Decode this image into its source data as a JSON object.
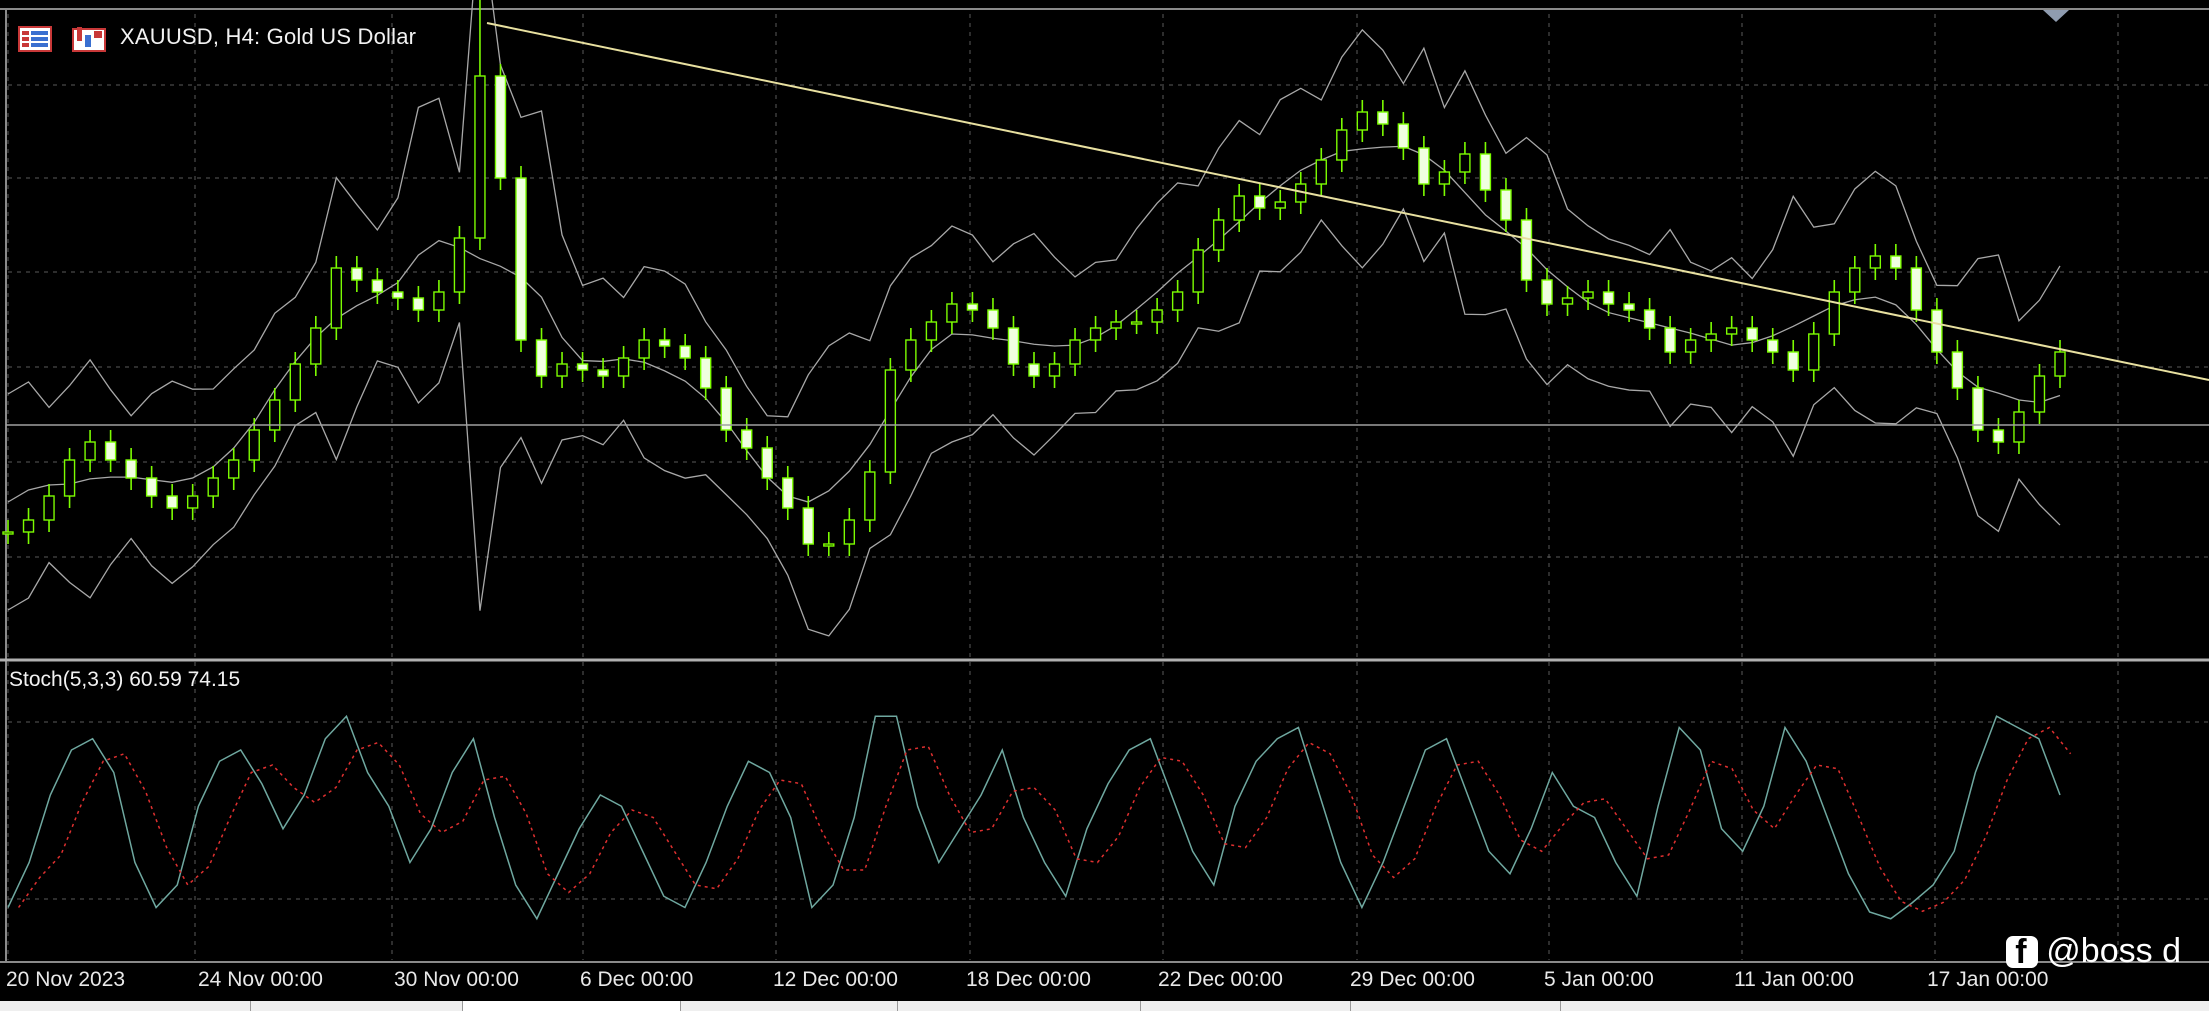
{
  "window": {
    "title": "XAUUSD, H4:  Gold US Dollar",
    "symbol": "XAUUSD",
    "timeframe": "H4",
    "description": "Gold US Dollar"
  },
  "icons": [
    "chart-properties-icon",
    "one-click-trading-icon",
    "facebook-icon"
  ],
  "indicator": {
    "label": "Stoch(5,3,3) 60.59 74.15",
    "name": "Stoch(5,3,3)",
    "main": 60.59,
    "signal": 74.15
  },
  "watermark": {
    "text": "@boss d"
  },
  "colors": {
    "background": "#000000",
    "grid": "#5a5a5a",
    "candle": "#7cfc00",
    "band": "#a8a8a8",
    "trendline": "#e8e0a0",
    "stoch_main": "#6fa8a0",
    "stoch_signal": "#e03030"
  },
  "chart_data": {
    "type": "candlestick",
    "x_labels": [
      "20 Nov 2023",
      "24 Nov 00:00",
      "30 Nov 00:00",
      "6 Dec 00:00",
      "12 Dec 00:00",
      "18 Dec 00:00",
      "22 Dec 00:00",
      "29 Dec 00:00",
      "5 Jan 00:00",
      "11 Jan 00:00",
      "17 Jan 00:00"
    ],
    "price_close_path": [
      0.18,
      0.2,
      0.24,
      0.3,
      0.33,
      0.3,
      0.27,
      0.24,
      0.22,
      0.24,
      0.27,
      0.3,
      0.35,
      0.4,
      0.46,
      0.52,
      0.62,
      0.6,
      0.58,
      0.57,
      0.55,
      0.58,
      0.67,
      0.94,
      0.77,
      0.5,
      0.44,
      0.46,
      0.45,
      0.44,
      0.47,
      0.5,
      0.49,
      0.47,
      0.42,
      0.35,
      0.32,
      0.27,
      0.22,
      0.16,
      0.16,
      0.2,
      0.28,
      0.45,
      0.5,
      0.53,
      0.56,
      0.55,
      0.52,
      0.46,
      0.44,
      0.46,
      0.5,
      0.52,
      0.53,
      0.53,
      0.55,
      0.58,
      0.65,
      0.7,
      0.74,
      0.72,
      0.73,
      0.76,
      0.8,
      0.85,
      0.88,
      0.86,
      0.82,
      0.76,
      0.78,
      0.81,
      0.75,
      0.7,
      0.6,
      0.56,
      0.57,
      0.58,
      0.56,
      0.55,
      0.52,
      0.48,
      0.5,
      0.51,
      0.52,
      0.5,
      0.48,
      0.45,
      0.51,
      0.58,
      0.62,
      0.64,
      0.62,
      0.55,
      0.48,
      0.42,
      0.35,
      0.33,
      0.38,
      0.44,
      0.48
    ],
    "stoch_main": [
      0.1,
      0.3,
      0.6,
      0.8,
      0.85,
      0.7,
      0.3,
      0.1,
      0.2,
      0.55,
      0.75,
      0.8,
      0.65,
      0.45,
      0.6,
      0.85,
      0.95,
      0.7,
      0.55,
      0.3,
      0.45,
      0.7,
      0.85,
      0.5,
      0.2,
      0.05,
      0.25,
      0.45,
      0.6,
      0.55,
      0.35,
      0.15,
      0.1,
      0.3,
      0.55,
      0.75,
      0.7,
      0.5,
      0.1,
      0.2,
      0.5,
      0.95,
      0.95,
      0.55,
      0.3,
      0.45,
      0.6,
      0.8,
      0.5,
      0.3,
      0.15,
      0.45,
      0.65,
      0.8,
      0.85,
      0.6,
      0.35,
      0.2,
      0.55,
      0.75,
      0.85,
      0.9,
      0.6,
      0.3,
      0.1,
      0.3,
      0.55,
      0.8,
      0.85,
      0.6,
      0.35,
      0.25,
      0.45,
      0.7,
      0.55,
      0.5,
      0.3,
      0.15,
      0.55,
      0.9,
      0.8,
      0.45,
      0.35,
      0.55,
      0.9,
      0.75,
      0.5,
      0.25,
      0.08,
      0.05,
      0.12,
      0.2,
      0.35,
      0.7,
      0.95,
      0.9,
      0.85,
      0.6
    ],
    "stoch_signal_offset": 1
  }
}
